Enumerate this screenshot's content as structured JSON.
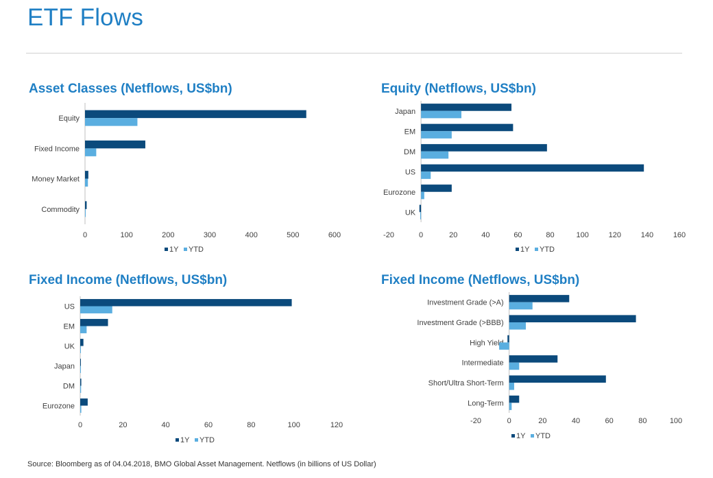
{
  "page": {
    "title": "ETF Flows",
    "source": "Source: Bloomberg as of 04.04.2018, BMO Global Asset Management. Netflows (in billions of US Dollar)"
  },
  "colors": {
    "series_1y": "#0b4a7c",
    "series_ytd": "#5aaee0",
    "title": "#1f7fc4"
  },
  "chart_data": [
    {
      "id": "asset-classes",
      "type": "bar",
      "orientation": "horizontal",
      "title": "Asset Classes (Netflows, US$bn)",
      "categories": [
        "Equity",
        "Fixed Income",
        "Money Market",
        "Commodity"
      ],
      "series": [
        {
          "name": "1Y",
          "values": [
            532,
            145,
            8,
            4
          ]
        },
        {
          "name": "YTD",
          "values": [
            126,
            27,
            7,
            1
          ]
        }
      ],
      "xlim": [
        0,
        600
      ],
      "xticks": [
        0,
        100,
        200,
        300,
        400,
        500,
        600
      ],
      "legend": [
        "1Y",
        "YTD"
      ]
    },
    {
      "id": "equity",
      "type": "bar",
      "orientation": "horizontal",
      "title": "Equity (Netflows, US$bn)",
      "categories": [
        "Japan",
        "EM",
        "DM",
        "US",
        "Eurozone",
        "UK"
      ],
      "series": [
        {
          "name": "1Y",
          "values": [
            56,
            57,
            78,
            138,
            19,
            -1
          ]
        },
        {
          "name": "YTD",
          "values": [
            25,
            19,
            17,
            6,
            2,
            -0.5
          ]
        }
      ],
      "xlim": [
        -20,
        160
      ],
      "xticks": [
        -20,
        0,
        20,
        40,
        60,
        80,
        100,
        120,
        140,
        160
      ],
      "legend": [
        "1Y",
        "YTD"
      ]
    },
    {
      "id": "fixed-income-regions",
      "type": "bar",
      "orientation": "horizontal",
      "title": "Fixed Income (Netflows, US$bn)",
      "categories": [
        "US",
        "EM",
        "UK",
        "Japan",
        "DM",
        "Eurozone"
      ],
      "series": [
        {
          "name": "1Y",
          "values": [
            99,
            13,
            1.5,
            0.3,
            0.5,
            3.5
          ]
        },
        {
          "name": "YTD",
          "values": [
            15,
            3,
            0.3,
            0.1,
            0.4,
            0.5
          ]
        }
      ],
      "xlim": [
        0,
        120
      ],
      "xticks": [
        0,
        20,
        40,
        60,
        80,
        100,
        120
      ],
      "legend": [
        "1Y",
        "YTD"
      ]
    },
    {
      "id": "fixed-income-segments",
      "type": "bar",
      "orientation": "horizontal",
      "title": "Fixed Income (Netflows, US$bn)",
      "categories": [
        "Investment Grade (>A)",
        "Investment Grade (>BBB)",
        "High Yield",
        "Intermediate",
        "Short/Ultra Short-Term",
        "Long-Term"
      ],
      "series": [
        {
          "name": "1Y",
          "values": [
            36,
            76,
            -1,
            29,
            58,
            6
          ]
        },
        {
          "name": "YTD",
          "values": [
            14,
            10,
            -6,
            6,
            3,
            1.5
          ]
        }
      ],
      "xlim": [
        -20,
        100
      ],
      "xticks": [
        -20,
        0,
        20,
        40,
        60,
        80,
        100
      ],
      "legend": [
        "1Y",
        "YTD"
      ]
    }
  ]
}
